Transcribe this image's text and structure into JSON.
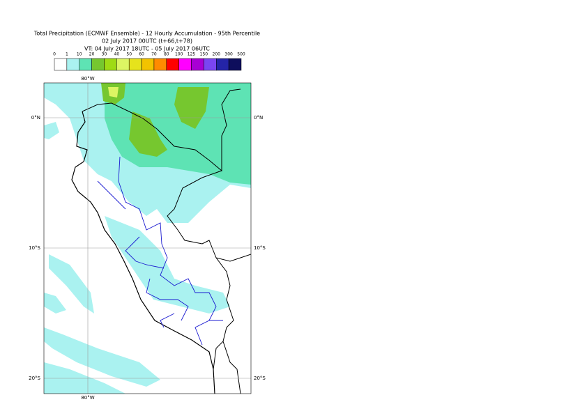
{
  "header": {
    "title": "Total Precipitation (ECMWF Ensemble) - 12 Hourly Accumulation - 95th Percentile",
    "line2": "02 July 2017 00UTC (t+66,t+78)",
    "line3": "VT: 04 July 2017 18UTC - 05 July 2017 06UTC"
  },
  "legend": {
    "labels": [
      0,
      1,
      10,
      20,
      30,
      40,
      50,
      60,
      70,
      80,
      100,
      125,
      150,
      200,
      300,
      500
    ],
    "colors": [
      "#ffffff",
      "#aaf2f0",
      "#5ee3b4",
      "#76c72f",
      "#9fdb14",
      "#dcf563",
      "#e6e31c",
      "#f2c300",
      "#ff8a00",
      "#ff0000",
      "#ff00ff",
      "#a800d4",
      "#7a45f2",
      "#2424a8",
      "#0e0e5c"
    ]
  },
  "map": {
    "lon_label": "80°W",
    "lat_labels": [
      "0°N",
      "10°S",
      "20°S"
    ]
  }
}
